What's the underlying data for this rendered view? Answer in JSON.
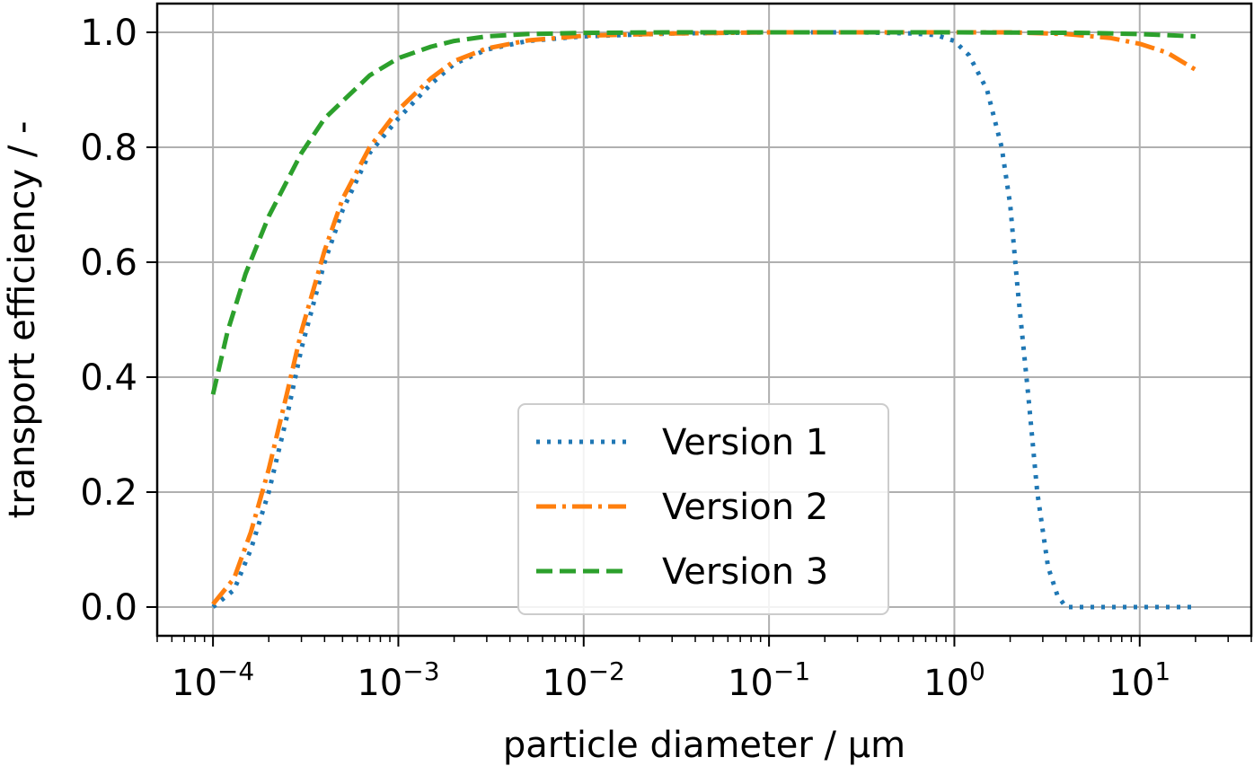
{
  "chart_data": {
    "type": "line",
    "xlabel": "particle diameter / µm",
    "ylabel": "transport efficiency / -",
    "x_scale": "log",
    "xlim": [
      5e-05,
      40
    ],
    "ylim": [
      -0.05,
      1.05
    ],
    "x_ticks": [
      0.0001,
      0.001,
      0.01,
      0.1,
      1,
      10
    ],
    "x_tick_labels": [
      {
        "base": "10",
        "exp": "−4"
      },
      {
        "base": "10",
        "exp": "−3"
      },
      {
        "base": "10",
        "exp": "−2"
      },
      {
        "base": "10",
        "exp": "−1"
      },
      {
        "base": "10",
        "exp": "0"
      },
      {
        "base": "10",
        "exp": "1"
      }
    ],
    "y_ticks": [
      0.0,
      0.2,
      0.4,
      0.6,
      0.8,
      1.0
    ],
    "y_tick_labels": [
      "0.0",
      "0.2",
      "0.4",
      "0.6",
      "0.8",
      "1.0"
    ],
    "grid": true,
    "legend_position": "lower-center",
    "series": [
      {
        "name": "Version 1",
        "color": "#1f77b4",
        "style": "dotted",
        "x": [
          0.0001,
          0.00013,
          0.00016,
          0.0002,
          0.00025,
          0.0003,
          0.0004,
          0.0005,
          0.0007,
          0.001,
          0.0015,
          0.002,
          0.003,
          0.005,
          0.01,
          0.03,
          0.1,
          0.3,
          0.6,
          0.8,
          1.0,
          1.2,
          1.5,
          1.8,
          2.0,
          2.2,
          2.5,
          2.8,
          3.2,
          3.6,
          4.0,
          5,
          10,
          20
        ],
        "y": [
          0.0,
          0.03,
          0.1,
          0.2,
          0.33,
          0.45,
          0.6,
          0.69,
          0.79,
          0.85,
          0.91,
          0.945,
          0.97,
          0.985,
          0.993,
          0.998,
          1.0,
          1.0,
          0.998,
          0.995,
          0.985,
          0.96,
          0.9,
          0.8,
          0.7,
          0.55,
          0.37,
          0.2,
          0.07,
          0.02,
          0.0,
          0.0,
          0.0,
          0.0
        ]
      },
      {
        "name": "Version 2",
        "color": "#ff7f0e",
        "style": "dashdot",
        "x": [
          0.0001,
          0.00013,
          0.00016,
          0.0002,
          0.00025,
          0.0003,
          0.0004,
          0.0005,
          0.0007,
          0.001,
          0.0015,
          0.002,
          0.003,
          0.005,
          0.01,
          0.03,
          0.1,
          0.3,
          1.0,
          2.0,
          4.0,
          7.0,
          10,
          14,
          20
        ],
        "y": [
          0.005,
          0.05,
          0.13,
          0.24,
          0.37,
          0.48,
          0.62,
          0.71,
          0.8,
          0.865,
          0.92,
          0.95,
          0.972,
          0.986,
          0.994,
          0.998,
          1.0,
          1.0,
          1.0,
          1.0,
          0.997,
          0.99,
          0.98,
          0.965,
          0.935
        ]
      },
      {
        "name": "Version 3",
        "color": "#2ca02c",
        "style": "dashed",
        "x": [
          0.0001,
          0.00012,
          0.00015,
          0.0002,
          0.0003,
          0.0004,
          0.0005,
          0.0007,
          0.001,
          0.0015,
          0.002,
          0.003,
          0.005,
          0.01,
          0.03,
          0.1,
          1.0,
          5.0,
          10,
          20
        ],
        "y": [
          0.37,
          0.48,
          0.58,
          0.68,
          0.79,
          0.85,
          0.88,
          0.925,
          0.955,
          0.975,
          0.985,
          0.993,
          0.997,
          0.999,
          1.0,
          1.0,
          1.0,
          0.999,
          0.997,
          0.993
        ]
      }
    ]
  }
}
